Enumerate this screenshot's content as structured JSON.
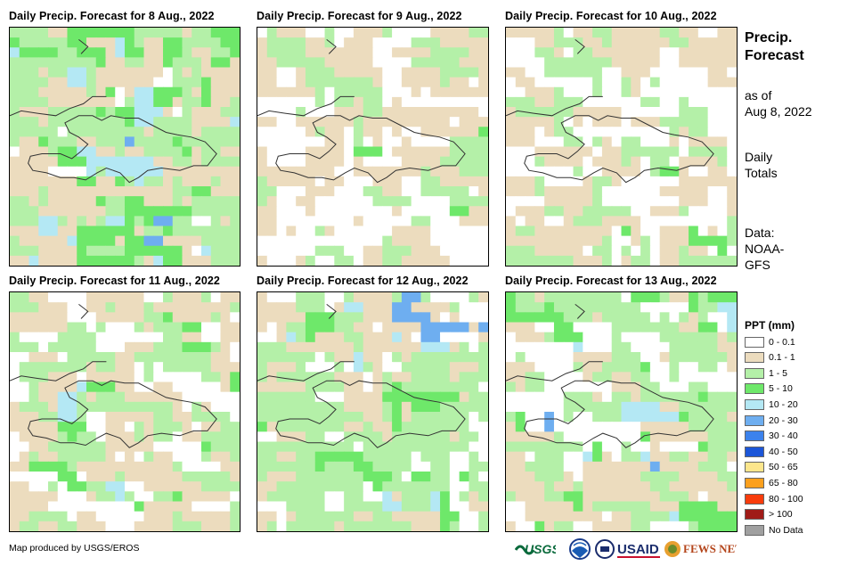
{
  "panels": [
    {
      "title": "Daily Precip. Forecast for 8 Aug., 2022"
    },
    {
      "title": "Daily Precip. Forecast for 9 Aug., 2022"
    },
    {
      "title": "Daily Precip. Forecast for 10 Aug., 2022"
    },
    {
      "title": "Daily Precip. Forecast for 11 Aug., 2022"
    },
    {
      "title": "Daily Precip. Forecast for 12 Aug., 2022"
    },
    {
      "title": "Daily Precip. Forecast for 13 Aug., 2022"
    }
  ],
  "sidebar": {
    "title_line1": "Precip.",
    "title_line2": "Forecast",
    "asof_line1": "as of",
    "asof_line2": "Aug 8, 2022",
    "daily_line1": "Daily",
    "daily_line2": "Totals",
    "data_line1": "Data:",
    "data_line2": "NOAA-",
    "data_line3": "GFS"
  },
  "legend": {
    "title": "PPT (mm)",
    "items": [
      {
        "label": "0 - 0.1",
        "color": "#ffffff"
      },
      {
        "label": "0.1 - 1",
        "color": "#ecdcbe"
      },
      {
        "label": "1 - 5",
        "color": "#b4f0a8"
      },
      {
        "label": "5 - 10",
        "color": "#6ee86a"
      },
      {
        "label": "10 - 20",
        "color": "#b4e8f4"
      },
      {
        "label": "20 - 30",
        "color": "#6eaef0"
      },
      {
        "label": "30 - 40",
        "color": "#3c82ec"
      },
      {
        "label": "40 - 50",
        "color": "#1c56d8"
      },
      {
        "label": "50 - 65",
        "color": "#fce68c"
      },
      {
        "label": "65 - 80",
        "color": "#fca01e"
      },
      {
        "label": "80 - 100",
        "color": "#f83c0c"
      },
      {
        "label": "> 100",
        "color": "#a01c18"
      },
      {
        "label": "No Data",
        "color": "#a0a0a0"
      }
    ]
  },
  "footer": {
    "credit": "Map produced by USGS/EROS",
    "logos": {
      "usgs": "USGS",
      "usaid": "USAID",
      "fewsnet": "FEWS NET"
    }
  }
}
